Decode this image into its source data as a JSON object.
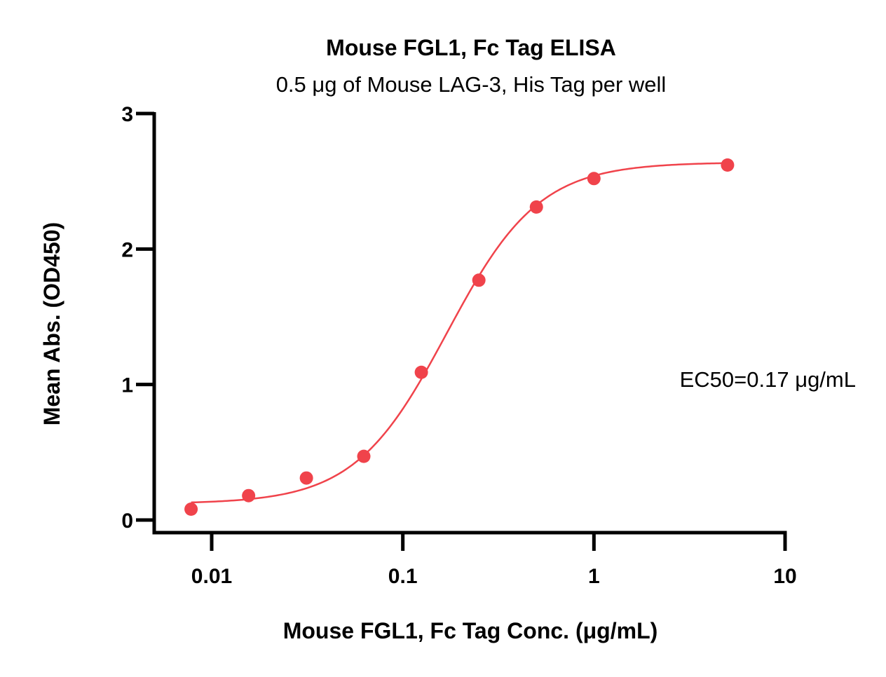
{
  "colors": {
    "series": "#f0434b",
    "axis": "#000000",
    "background": "#ffffff"
  },
  "chart_data": {
    "type": "scatter",
    "title": "Mouse FGL1, Fc Tag ELISA",
    "subtitle": "0.5 μg of Mouse LAG-3, His Tag per well",
    "xlabel": "Mouse FGL1, Fc Tag Conc. (μg/mL)",
    "ylabel": "Mean Abs. (OD450)",
    "xscale": "log",
    "xlim": [
      0.005,
      10
    ],
    "ylim": [
      0,
      3
    ],
    "x_ticks": [
      0.01,
      0.1,
      1,
      10
    ],
    "x_tick_labels": [
      "0.01",
      "0.1",
      "1",
      "10"
    ],
    "y_ticks": [
      0,
      1,
      2,
      3
    ],
    "y_tick_labels": [
      "0",
      "1",
      "2",
      "3"
    ],
    "grid": false,
    "legend": "none",
    "annotation": "EC50=0.17 μg/mL",
    "series": [
      {
        "x": [
          0.0078,
          0.0156,
          0.0313,
          0.0625,
          0.125,
          0.25,
          0.5,
          1,
          5
        ],
        "y": [
          0.08,
          0.18,
          0.31,
          0.47,
          1.09,
          1.77,
          2.31,
          2.52,
          2.62
        ]
      }
    ],
    "fit": {
      "model": "4PL",
      "bottom": 0.12,
      "top": 2.64,
      "ec50": 0.17,
      "hill": 1.8
    }
  }
}
